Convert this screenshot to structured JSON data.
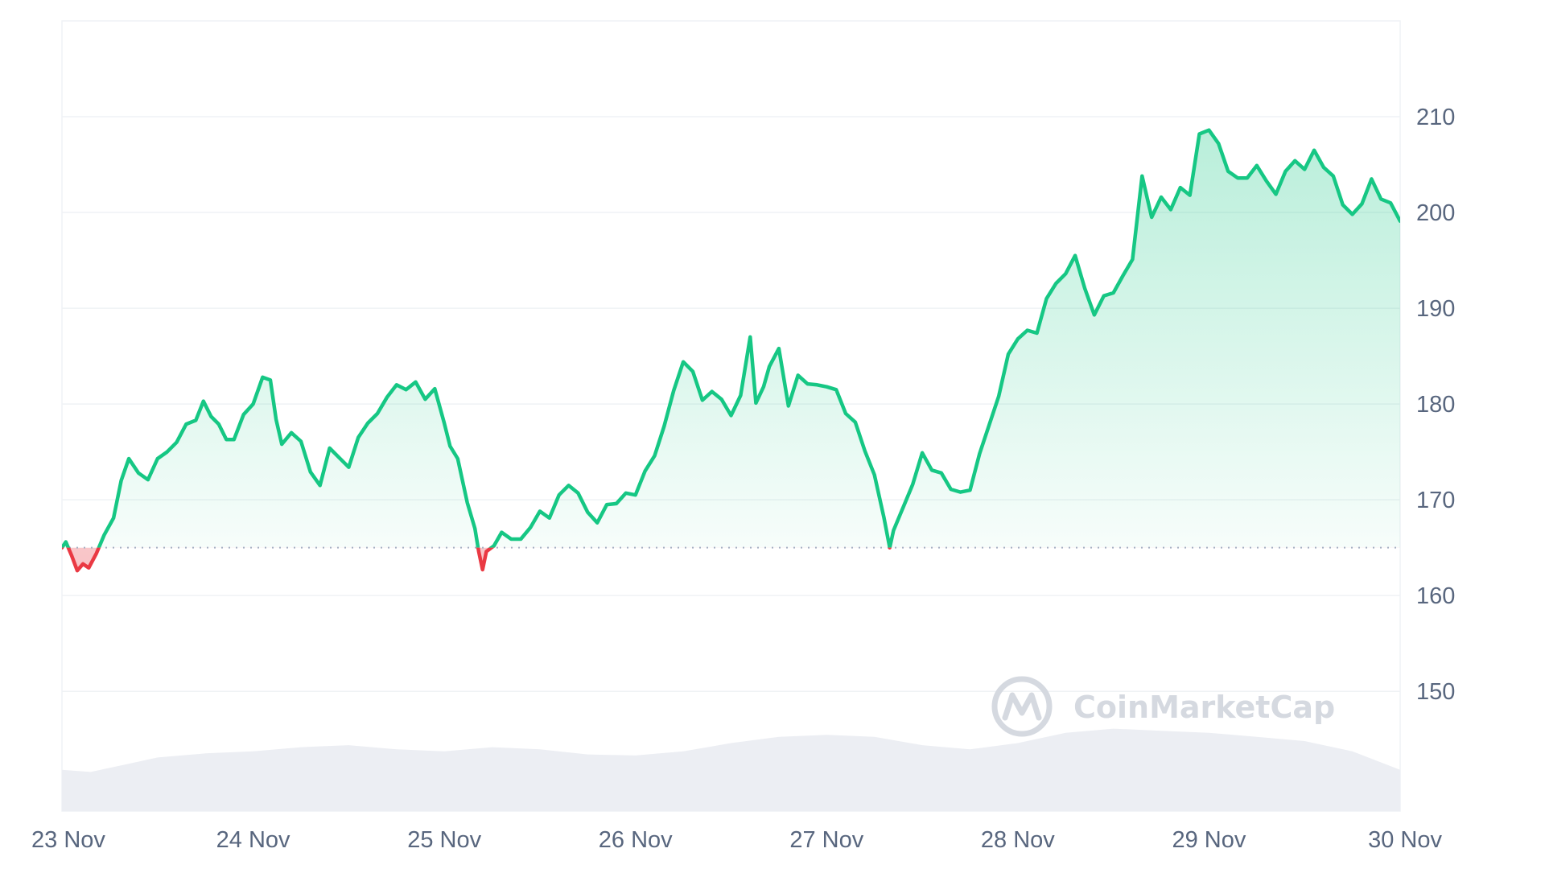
{
  "watermark": {
    "text": "CoinMarketCap",
    "icon": "coinmarketcap-logo-icon"
  },
  "colors": {
    "up_line": "#16c784",
    "down_line": "#ea3943",
    "up_fill": "#16c784",
    "down_fill": "#ea3943",
    "grid": "#eff2f5",
    "baseline": "#a6b0c3",
    "volume": "#eceef3",
    "axis_text": "#58667e",
    "watermark": "#d5d9e0"
  },
  "chart_data": {
    "type": "area",
    "title": "",
    "xlabel": "",
    "ylabel": "",
    "x_tick_labels": [
      "23 Nov",
      "24 Nov",
      "25 Nov",
      "26 Nov",
      "27 Nov",
      "28 Nov",
      "29 Nov",
      "30 Nov"
    ],
    "y_tick_labels": [
      "150",
      "160",
      "170",
      "180",
      "190",
      "200",
      "210"
    ],
    "ylim": [
      137.5,
      220
    ],
    "xlim": [
      0,
      7
    ],
    "grid": true,
    "legend": "none",
    "baseline_value": 165,
    "series": [
      {
        "values": [
          [
            0.0,
            165.0
          ],
          [
            0.02,
            165.6
          ],
          [
            0.05,
            164.2
          ],
          [
            0.08,
            162.6
          ],
          [
            0.11,
            163.3
          ],
          [
            0.14,
            162.9
          ],
          [
            0.18,
            164.4
          ],
          [
            0.22,
            166.3
          ],
          [
            0.27,
            168.1
          ],
          [
            0.31,
            172.0
          ],
          [
            0.35,
            174.3
          ],
          [
            0.4,
            172.8
          ],
          [
            0.45,
            172.1
          ],
          [
            0.5,
            174.3
          ],
          [
            0.55,
            175.0
          ],
          [
            0.6,
            176.0
          ],
          [
            0.65,
            177.9
          ],
          [
            0.7,
            178.3
          ],
          [
            0.74,
            180.3
          ],
          [
            0.78,
            178.7
          ],
          [
            0.82,
            177.9
          ],
          [
            0.86,
            176.3
          ],
          [
            0.9,
            176.3
          ],
          [
            0.95,
            178.9
          ],
          [
            1.0,
            180.0
          ],
          [
            1.05,
            182.8
          ],
          [
            1.09,
            182.5
          ],
          [
            1.12,
            178.4
          ],
          [
            1.15,
            175.8
          ],
          [
            1.2,
            177.0
          ],
          [
            1.25,
            176.1
          ],
          [
            1.3,
            172.9
          ],
          [
            1.35,
            171.5
          ],
          [
            1.4,
            175.4
          ],
          [
            1.45,
            174.4
          ],
          [
            1.5,
            173.4
          ],
          [
            1.55,
            176.5
          ],
          [
            1.6,
            178.0
          ],
          [
            1.65,
            179.0
          ],
          [
            1.7,
            180.7
          ],
          [
            1.75,
            182.0
          ],
          [
            1.8,
            181.5
          ],
          [
            1.85,
            182.3
          ],
          [
            1.9,
            180.5
          ],
          [
            1.95,
            181.6
          ],
          [
            2.0,
            178.0
          ],
          [
            2.03,
            175.6
          ],
          [
            2.07,
            174.3
          ],
          [
            2.12,
            169.7
          ],
          [
            2.16,
            167.0
          ],
          [
            2.18,
            164.6
          ],
          [
            2.2,
            162.7
          ],
          [
            2.22,
            164.6
          ],
          [
            2.26,
            165.2
          ],
          [
            2.3,
            166.6
          ],
          [
            2.35,
            165.9
          ],
          [
            2.4,
            165.9
          ],
          [
            2.45,
            167.1
          ],
          [
            2.5,
            168.8
          ],
          [
            2.55,
            168.1
          ],
          [
            2.6,
            170.5
          ],
          [
            2.65,
            171.5
          ],
          [
            2.7,
            170.7
          ],
          [
            2.75,
            168.7
          ],
          [
            2.8,
            167.6
          ],
          [
            2.85,
            169.5
          ],
          [
            2.9,
            169.6
          ],
          [
            2.95,
            170.7
          ],
          [
            3.0,
            170.5
          ],
          [
            3.05,
            173.0
          ],
          [
            3.1,
            174.6
          ],
          [
            3.15,
            177.7
          ],
          [
            3.2,
            181.4
          ],
          [
            3.25,
            184.4
          ],
          [
            3.3,
            183.4
          ],
          [
            3.35,
            180.4
          ],
          [
            3.4,
            181.3
          ],
          [
            3.45,
            180.5
          ],
          [
            3.5,
            178.8
          ],
          [
            3.55,
            180.9
          ],
          [
            3.6,
            187.0
          ],
          [
            3.63,
            180.1
          ],
          [
            3.67,
            181.8
          ],
          [
            3.7,
            183.9
          ],
          [
            3.75,
            185.8
          ],
          [
            3.8,
            179.8
          ],
          [
            3.85,
            183.0
          ],
          [
            3.9,
            182.1
          ],
          [
            3.95,
            182.0
          ],
          [
            4.0,
            181.8
          ],
          [
            4.05,
            181.5
          ],
          [
            4.1,
            179.0
          ],
          [
            4.15,
            178.1
          ],
          [
            4.2,
            175.1
          ],
          [
            4.25,
            172.6
          ],
          [
            4.3,
            168.1
          ],
          [
            4.33,
            165.0
          ],
          [
            4.35,
            166.8
          ],
          [
            4.4,
            169.2
          ],
          [
            4.45,
            171.6
          ],
          [
            4.5,
            174.9
          ],
          [
            4.55,
            173.1
          ],
          [
            4.6,
            172.8
          ],
          [
            4.65,
            171.1
          ],
          [
            4.7,
            170.8
          ],
          [
            4.75,
            171.0
          ],
          [
            4.8,
            174.8
          ],
          [
            4.85,
            177.8
          ],
          [
            4.9,
            180.8
          ],
          [
            4.95,
            185.2
          ],
          [
            5.0,
            186.8
          ],
          [
            5.05,
            187.7
          ],
          [
            5.1,
            187.4
          ],
          [
            5.15,
            191.0
          ],
          [
            5.2,
            192.6
          ],
          [
            5.25,
            193.6
          ],
          [
            5.3,
            195.5
          ],
          [
            5.35,
            192.1
          ],
          [
            5.4,
            189.3
          ],
          [
            5.45,
            191.3
          ],
          [
            5.5,
            191.6
          ],
          [
            5.55,
            193.4
          ],
          [
            5.6,
            195.1
          ],
          [
            5.65,
            203.8
          ],
          [
            5.7,
            199.5
          ],
          [
            5.75,
            201.6
          ],
          [
            5.8,
            200.3
          ],
          [
            5.85,
            202.6
          ],
          [
            5.9,
            201.8
          ],
          [
            5.95,
            208.2
          ],
          [
            6.0,
            208.6
          ],
          [
            6.05,
            207.2
          ],
          [
            6.1,
            204.3
          ],
          [
            6.15,
            203.6
          ],
          [
            6.2,
            203.6
          ],
          [
            6.25,
            204.9
          ],
          [
            6.3,
            203.3
          ],
          [
            6.35,
            201.9
          ],
          [
            6.4,
            204.3
          ],
          [
            6.45,
            205.4
          ],
          [
            6.5,
            204.5
          ],
          [
            6.55,
            206.5
          ],
          [
            6.6,
            204.7
          ],
          [
            6.65,
            203.8
          ],
          [
            6.7,
            200.8
          ],
          [
            6.75,
            199.8
          ],
          [
            6.8,
            200.9
          ],
          [
            6.85,
            203.5
          ],
          [
            6.9,
            201.4
          ],
          [
            6.95,
            201.0
          ],
          [
            7.0,
            199.1
          ]
        ]
      }
    ],
    "volume_series": [
      [
        0.0,
        0.4
      ],
      [
        0.15,
        0.38
      ],
      [
        0.3,
        0.44
      ],
      [
        0.5,
        0.52
      ],
      [
        0.75,
        0.56
      ],
      [
        1.0,
        0.58
      ],
      [
        1.25,
        0.62
      ],
      [
        1.5,
        0.64
      ],
      [
        1.75,
        0.6
      ],
      [
        2.0,
        0.58
      ],
      [
        2.25,
        0.62
      ],
      [
        2.5,
        0.6
      ],
      [
        2.75,
        0.55
      ],
      [
        3.0,
        0.54
      ],
      [
        3.25,
        0.58
      ],
      [
        3.5,
        0.66
      ],
      [
        3.75,
        0.72
      ],
      [
        4.0,
        0.74
      ],
      [
        4.25,
        0.72
      ],
      [
        4.5,
        0.64
      ],
      [
        4.75,
        0.6
      ],
      [
        5.0,
        0.66
      ],
      [
        5.25,
        0.76
      ],
      [
        5.5,
        0.8
      ],
      [
        5.75,
        0.78
      ],
      [
        6.0,
        0.76
      ],
      [
        6.25,
        0.72
      ],
      [
        6.5,
        0.68
      ],
      [
        6.75,
        0.58
      ],
      [
        7.0,
        0.4
      ]
    ]
  }
}
